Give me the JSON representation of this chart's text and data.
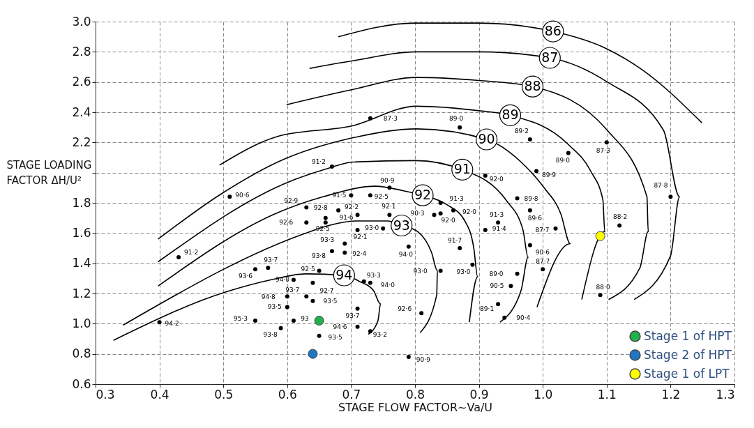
{
  "chart_data": {
    "type": "line",
    "xlabel": "STAGE FLOW FACTOR~Va/U",
    "ylabel": "STAGE LOADING FACTOR ΔH/U²",
    "xlim": [
      0.3,
      1.3
    ],
    "ylim": [
      0.6,
      3.0
    ],
    "xticks": [
      {
        "value": 0.3,
        "label": "0.3"
      },
      {
        "value": 0.4,
        "label": "0.4"
      },
      {
        "value": 0.5,
        "label": "0.5"
      },
      {
        "value": 0.6,
        "label": "0.6"
      },
      {
        "value": 0.7,
        "label": "0.7"
      },
      {
        "value": 0.8,
        "label": "0.8"
      },
      {
        "value": 0.9,
        "label": "0.9"
      },
      {
        "value": 1.0,
        "label": "1.0"
      },
      {
        "value": 1.1,
        "label": "1.1"
      },
      {
        "value": 1.2,
        "label": "1.2"
      },
      {
        "value": 1.3,
        "label": "1.3"
      }
    ],
    "yticks": [
      {
        "value": 0.6,
        "label": "0.6"
      },
      {
        "value": 0.8,
        "label": "0.8"
      },
      {
        "value": 1.0,
        "label": "1.0"
      },
      {
        "value": 1.2,
        "label": "1.2"
      },
      {
        "value": 1.4,
        "label": "1.4"
      },
      {
        "value": 1.6,
        "label": "1.6"
      },
      {
        "value": 1.8,
        "label": "1.8"
      },
      {
        "value": 2.0,
        "label": null
      },
      {
        "value": 2.2,
        "label": "2.2"
      },
      {
        "value": 2.4,
        "label": "2.4"
      },
      {
        "value": 2.6,
        "label": "2.6"
      },
      {
        "value": 2.8,
        "label": "2.8"
      },
      {
        "value": 3.0,
        "label": "3.0"
      }
    ],
    "grid": true,
    "legend": "bottom right",
    "series": [
      {
        "name": "86",
        "color": "#000000",
        "x": [
          0.68,
          0.8,
          0.9,
          1.016,
          1.1,
          1.156,
          1.249
        ],
        "values": [
          2.9,
          2.99,
          2.99,
          2.935,
          2.82,
          2.68,
          2.33
        ]
      },
      {
        "name": "87",
        "color": "#000000",
        "x": [
          0.635,
          0.702,
          0.802,
          0.9,
          1.011,
          1.101,
          1.189,
          1.214,
          1.2,
          1.143
        ],
        "values": [
          2.69,
          2.74,
          2.8,
          2.8,
          2.76,
          2.6,
          2.28,
          1.84,
          1.45,
          1.16
        ]
      },
      {
        "name": "88",
        "color": "#000000",
        "x": [
          0.599,
          0.702,
          0.802,
          0.9,
          0.984,
          1.101,
          1.163,
          1.165,
          1.152,
          1.103
        ],
        "values": [
          2.45,
          2.55,
          2.63,
          2.61,
          2.57,
          2.28,
          1.84,
          1.61,
          1.37,
          1.16
        ]
      },
      {
        "name": "89",
        "color": "#000000",
        "x": [
          0.494,
          0.585,
          0.702,
          0.802,
          0.9,
          0.949,
          1.039,
          1.075,
          1.094,
          1.097,
          1.061
        ],
        "values": [
          2.05,
          2.24,
          2.31,
          2.44,
          2.41,
          2.38,
          2.19,
          2.01,
          1.82,
          1.61,
          1.16
        ]
      },
      {
        "name": "90",
        "color": "#000000",
        "x": [
          0.398,
          0.497,
          0.585,
          0.702,
          0.802,
          0.912,
          0.966,
          1.002,
          1.028,
          1.043,
          0.991
        ],
        "values": [
          1.56,
          1.86,
          2.07,
          2.23,
          2.29,
          2.22,
          2.07,
          1.9,
          1.73,
          1.53,
          1.11
        ]
      },
      {
        "name": "91",
        "color": "#000000",
        "x": [
          0.398,
          0.603,
          0.665,
          0.702,
          0.801,
          0.874,
          0.944,
          0.969,
          0.977,
          0.966,
          0.933
        ],
        "values": [
          1.41,
          1.94,
          2.03,
          2.07,
          2.08,
          2.02,
          1.81,
          1.62,
          1.44,
          1.22,
          1.01
        ]
      },
      {
        "name": "92",
        "color": "#000000",
        "x": [
          0.398,
          0.588,
          0.656,
          0.738,
          0.782,
          0.812,
          0.849,
          0.878,
          0.892,
          0.898,
          0.885
        ],
        "values": [
          1.25,
          1.74,
          1.84,
          1.91,
          1.88,
          1.85,
          1.79,
          1.68,
          1.5,
          1.31,
          1.01
        ]
      },
      {
        "name": "93",
        "color": "#000000",
        "x": [
          0.343,
          0.636,
          0.665,
          0.709,
          0.757,
          0.779,
          0.804,
          0.826,
          0.835,
          0.834,
          0.808
        ],
        "values": [
          0.99,
          1.61,
          1.65,
          1.68,
          1.68,
          1.65,
          1.61,
          1.47,
          1.35,
          1.19,
          0.94
        ]
      },
      {
        "name": "94",
        "color": "#000000",
        "x": [
          0.328,
          0.504,
          0.574,
          0.629,
          0.689,
          0.713,
          0.735,
          0.746,
          0.742,
          0.727
        ],
        "values": [
          0.89,
          1.21,
          1.29,
          1.33,
          1.32,
          1.28,
          1.22,
          1.13,
          1.02,
          0.93
        ]
      },
      {
        "type": "scatter",
        "color": "#000000",
        "x": [
          0.51,
          0.43,
          0.4,
          0.63,
          0.66,
          0.63,
          0.66,
          0.68,
          0.7,
          0.73,
          0.71,
          0.76,
          0.71,
          0.75,
          0.69,
          0.67,
          0.69,
          0.57,
          0.55,
          0.61,
          0.65,
          0.63,
          0.6,
          0.6,
          0.64,
          0.64,
          0.55,
          0.61,
          0.59,
          0.67,
          0.76,
          0.73,
          0.87,
          0.98,
          1.1,
          1.04,
          0.99,
          0.91,
          0.84,
          0.86,
          0.83,
          0.84,
          0.79,
          0.72,
          0.73,
          0.71,
          0.71,
          0.65,
          0.73,
          0.81,
          0.79,
          0.84,
          0.87,
          0.89,
          0.93,
          0.91,
          0.96,
          0.98,
          1.02,
          0.98,
          0.96,
          0.95,
          0.93,
          0.94,
          1.0,
          1.09,
          1.12,
          1.2
        ],
        "values": [
          1.84,
          1.44,
          1.01,
          1.77,
          1.7,
          1.67,
          1.67,
          1.75,
          1.85,
          1.85,
          1.72,
          1.72,
          1.62,
          1.63,
          1.53,
          1.48,
          1.47,
          1.37,
          1.36,
          1.29,
          1.35,
          1.18,
          1.18,
          1.11,
          1.27,
          1.15,
          1.02,
          1.02,
          0.97,
          2.04,
          1.9,
          2.36,
          2.3,
          2.22,
          2.2,
          2.13,
          2.01,
          1.98,
          1.8,
          1.75,
          1.72,
          1.73,
          1.51,
          1.28,
          1.27,
          1.1,
          0.98,
          0.92,
          0.95,
          1.07,
          0.78,
          1.35,
          1.5,
          1.39,
          1.67,
          1.62,
          1.83,
          1.75,
          1.63,
          1.52,
          1.33,
          1.25,
          1.13,
          1.04,
          1.36,
          1.19,
          1.65,
          1.84
        ]
      },
      {
        "name": "Stage 1 of HPT",
        "type": "scatter",
        "color": "#22b04b",
        "x": [
          0.65
        ],
        "values": [
          1.02
        ]
      },
      {
        "name": "Stage 2 of HPT",
        "type": "scatter",
        "color": "#1f77c4",
        "x": [
          0.64
        ],
        "values": [
          0.8
        ]
      },
      {
        "name": "Stage 1 of LPT",
        "type": "scatter",
        "color": "#ffff00",
        "x": [
          1.09
        ],
        "values": [
          1.58
        ]
      }
    ],
    "annotations": [
      {
        "text": "90·6",
        "x": 0.51,
        "y": 1.84
      },
      {
        "text": "91·2",
        "x": 0.43,
        "y": 1.44
      },
      {
        "text": "94·2",
        "x": 0.4,
        "y": 1.01
      },
      {
        "text": "92·9",
        "x": 0.63,
        "y": 1.77
      },
      {
        "text": "92·8",
        "x": 0.66,
        "y": 1.7
      },
      {
        "text": "92·6",
        "x": 0.63,
        "y": 1.67
      },
      {
        "text": "92·5",
        "x": 0.66,
        "y": 1.67
      },
      {
        "text": "92·2",
        "x": 0.68,
        "y": 1.75
      },
      {
        "text": "91·5",
        "x": 0.7,
        "y": 1.85
      },
      {
        "text": "92·5",
        "x": 0.73,
        "y": 1.85
      },
      {
        "text": "91·6",
        "x": 0.71,
        "y": 1.72
      },
      {
        "text": "92·1",
        "x": 0.76,
        "y": 1.72
      },
      {
        "text": "92·1",
        "x": 0.71,
        "y": 1.62
      },
      {
        "text": "93·0",
        "x": 0.75,
        "y": 1.63
      },
      {
        "text": "93·3",
        "x": 0.69,
        "y": 1.53
      },
      {
        "text": "93·8",
        "x": 0.67,
        "y": 1.48
      },
      {
        "text": "92·4",
        "x": 0.69,
        "y": 1.47
      },
      {
        "text": "93·7",
        "x": 0.57,
        "y": 1.37
      },
      {
        "text": "93·6",
        "x": 0.55,
        "y": 1.36
      },
      {
        "text": "94·0",
        "x": 0.61,
        "y": 1.29
      },
      {
        "text": "92·5",
        "x": 0.65,
        "y": 1.35
      },
      {
        "text": "93·7",
        "x": 0.63,
        "y": 1.18
      },
      {
        "text": "94·8",
        "x": 0.6,
        "y": 1.18
      },
      {
        "text": "93·5",
        "x": 0.6,
        "y": 1.11
      },
      {
        "text": "92·7",
        "x": 0.64,
        "y": 1.27
      },
      {
        "text": "93·5",
        "x": 0.64,
        "y": 1.15
      },
      {
        "text": "95·3",
        "x": 0.55,
        "y": 1.02
      },
      {
        "text": "93",
        "x": 0.61,
        "y": 1.02
      },
      {
        "text": "93·8",
        "x": 0.59,
        "y": 0.97
      },
      {
        "text": "91·2",
        "x": 0.67,
        "y": 2.04
      },
      {
        "text": "90·9",
        "x": 0.76,
        "y": 1.9
      },
      {
        "text": "87·3",
        "x": 0.73,
        "y": 2.36
      },
      {
        "text": "89·0",
        "x": 0.87,
        "y": 2.3
      },
      {
        "text": "89·2",
        "x": 0.98,
        "y": 2.22
      },
      {
        "text": "87·3",
        "x": 1.1,
        "y": 2.2
      },
      {
        "text": "89·0",
        "x": 1.04,
        "y": 2.13
      },
      {
        "text": "89·9",
        "x": 0.99,
        "y": 2.01
      },
      {
        "text": "92·0",
        "x": 0.91,
        "y": 1.98
      },
      {
        "text": "91·3",
        "x": 0.84,
        "y": 1.8
      },
      {
        "text": "92·0",
        "x": 0.86,
        "y": 1.75
      },
      {
        "text": "90·3",
        "x": 0.83,
        "y": 1.72
      },
      {
        "text": "92·0",
        "x": 0.84,
        "y": 1.73
      },
      {
        "text": "94·0",
        "x": 0.79,
        "y": 1.51
      },
      {
        "text": "93·3",
        "x": 0.72,
        "y": 1.28
      },
      {
        "text": "94·0",
        "x": 0.73,
        "y": 1.27
      },
      {
        "text": "93·7",
        "x": 0.71,
        "y": 1.1
      },
      {
        "text": "94·6",
        "x": 0.71,
        "y": 0.98
      },
      {
        "text": "93·5",
        "x": 0.65,
        "y": 0.92
      },
      {
        "text": "93·2",
        "x": 0.73,
        "y": 0.95
      },
      {
        "text": "92·6",
        "x": 0.81,
        "y": 1.07
      },
      {
        "text": "90·9",
        "x": 0.79,
        "y": 0.78
      },
      {
        "text": "93·0",
        "x": 0.84,
        "y": 1.35
      },
      {
        "text": "91·7",
        "x": 0.87,
        "y": 1.5
      },
      {
        "text": "93·0",
        "x": 0.89,
        "y": 1.39
      },
      {
        "text": "91·3",
        "x": 0.93,
        "y": 1.67
      },
      {
        "text": "91·4",
        "x": 0.91,
        "y": 1.62
      },
      {
        "text": "89·8",
        "x": 0.96,
        "y": 1.83
      },
      {
        "text": "89·6",
        "x": 0.98,
        "y": 1.75
      },
      {
        "text": "87·7",
        "x": 1.02,
        "y": 1.63
      },
      {
        "text": "90·6",
        "x": 0.98,
        "y": 1.52
      },
      {
        "text": "89·0",
        "x": 0.96,
        "y": 1.33
      },
      {
        "text": "90·5",
        "x": 0.95,
        "y": 1.25
      },
      {
        "text": "89·1",
        "x": 0.93,
        "y": 1.13
      },
      {
        "text": "90·4",
        "x": 0.94,
        "y": 1.04
      },
      {
        "text": "87·7",
        "x": 1.0,
        "y": 1.36
      },
      {
        "text": "88·0",
        "x": 1.09,
        "y": 1.19
      },
      {
        "text": "88·2",
        "x": 1.12,
        "y": 1.65
      },
      {
        "text": "87·8",
        "x": 1.2,
        "y": 1.84
      }
    ]
  }
}
